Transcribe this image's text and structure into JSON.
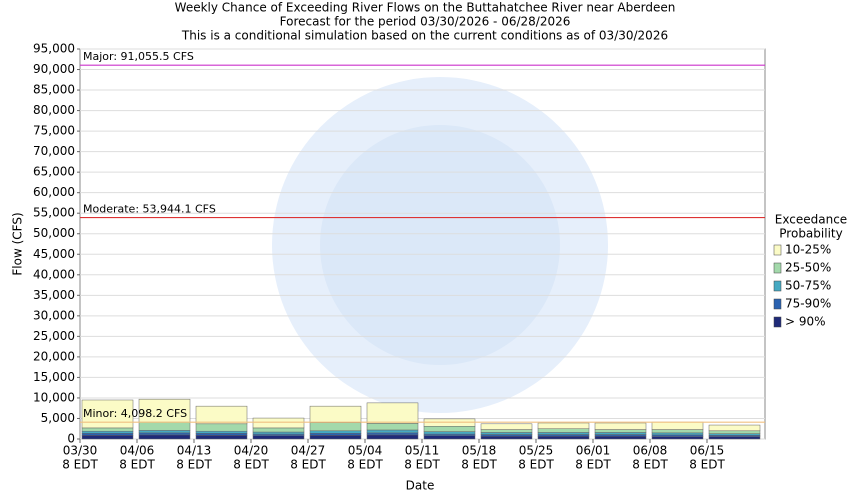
{
  "chart_data": {
    "type": "stacked-bar",
    "title": [
      "Weekly Chance of Exceeding River Flows on the Buttahatchee River near Aberdeen",
      "Forecast for the period 03/30/2026 - 06/28/2026",
      "This is a conditional simulation based on the current conditions as of 03/30/2026"
    ],
    "y_label": "Flow (CFS)",
    "x_label": "Date",
    "categories": [
      [
        "03/30",
        "8 EDT"
      ],
      [
        "04/06",
        "8 EDT"
      ],
      [
        "04/13",
        "8 EDT"
      ],
      [
        "04/20",
        "8 EDT"
      ],
      [
        "04/27",
        "8 EDT"
      ],
      [
        "05/04",
        "8 EDT"
      ],
      [
        "05/11",
        "8 EDT"
      ],
      [
        "05/18",
        "8 EDT"
      ],
      [
        "05/25",
        "8 EDT"
      ],
      [
        "06/01",
        "8 EDT"
      ],
      [
        "06/08",
        "8 EDT"
      ],
      [
        "06/15",
        "8 EDT"
      ]
    ],
    "series": [
      {
        "name": "> 90%",
        "color": "#1f2a78",
        "values": [
          900,
          1000,
          900,
          800,
          900,
          1000,
          800,
          700,
          700,
          700,
          600,
          600
        ]
      },
      {
        "name": "75-90%",
        "color": "#2a62b0",
        "values": [
          500,
          500,
          500,
          400,
          500,
          500,
          400,
          400,
          400,
          400,
          400,
          300
        ]
      },
      {
        "name": "50-75%",
        "color": "#45a9c2",
        "values": [
          500,
          600,
          500,
          500,
          600,
          700,
          600,
          500,
          500,
          500,
          500,
          400
        ]
      },
      {
        "name": "25-50%",
        "color": "#a3d9ab",
        "values": [
          800,
          2000,
          1800,
          1000,
          2000,
          1600,
          1300,
          700,
          900,
          700,
          800,
          700
        ]
      },
      {
        "name": "10-25%",
        "color": "#fbfbc6",
        "values": [
          6800,
          5600,
          4300,
          2400,
          4000,
          5000,
          1800,
          1400,
          1400,
          1600,
          1800,
          1400
        ]
      }
    ],
    "thresholds": [
      {
        "label": "Major: 91,055.5 CFS",
        "value": 91055.5,
        "color": "#cc33cc"
      },
      {
        "label": "Moderate: 53,944.1 CFS",
        "value": 53944.1,
        "color": "#dd3333"
      },
      {
        "label": "Minor: 4,098.2 CFS",
        "value": 4098.2,
        "color": "#f0c080"
      }
    ],
    "legend_title": [
      "Exceedance",
      "Probability"
    ],
    "ylim": [
      0,
      95000
    ],
    "yticks": [
      0,
      {
        "value": 5000,
        "label": "5,000"
      },
      {
        "value": 10000,
        "label": "10,000"
      },
      {
        "value": 15000,
        "label": "15,000"
      },
      {
        "value": 20000,
        "label": "20,000"
      },
      {
        "value": 25000,
        "label": "25,000"
      },
      {
        "value": 30000,
        "label": "30,000"
      },
      {
        "value": 35000,
        "label": "35,000"
      },
      {
        "value": 40000,
        "label": "40,000"
      },
      {
        "value": 45000,
        "label": "45,000"
      },
      {
        "value": 50000,
        "label": "50,000"
      },
      {
        "value": 55000,
        "label": "55,000"
      },
      {
        "value": 60000,
        "label": "60,000"
      },
      {
        "value": 65000,
        "label": "65,000"
      },
      {
        "value": 70000,
        "label": "70,000"
      },
      {
        "value": 75000,
        "label": "75,000"
      },
      {
        "value": 80000,
        "label": "80,000"
      },
      {
        "value": 85000,
        "label": "85,000"
      },
      {
        "value": 90000,
        "label": "90,000"
      },
      {
        "value": 95000,
        "label": "95,000"
      }
    ],
    "grid": true
  }
}
